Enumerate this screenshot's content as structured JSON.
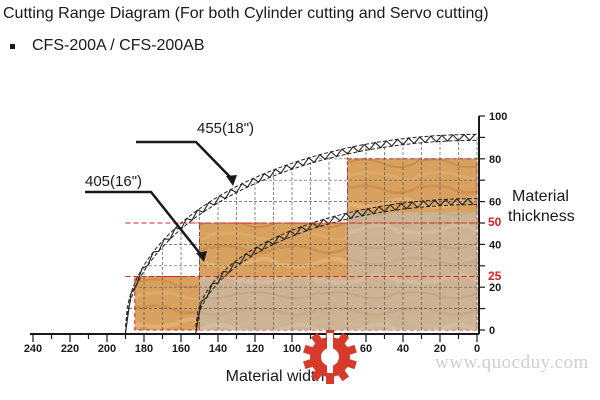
{
  "header": {
    "title": "Cutting Range Diagram (For both Cylinder cutting and Servo cutting)",
    "model": "CFS-200A / CFS-200AB"
  },
  "annotations": {
    "blade_455": "455(18\")",
    "blade_405": "405(16\")",
    "mark_50": "50",
    "mark_25": "25"
  },
  "watermark": "www.quocduy.com",
  "colors": {
    "outer_fill": "#d9a160",
    "inner_fill": "#ccb599",
    "grid": "#5a5a5a",
    "red_mark": "#e02020",
    "logo_red": "#d63a2a"
  },
  "chart_data": {
    "type": "area",
    "xlabel": "Material width",
    "ylabel": "Material thickness",
    "xticks": [
      240,
      220,
      200,
      180,
      160,
      140,
      120,
      100,
      80,
      60,
      40,
      20,
      0
    ],
    "yticks": [
      0,
      20,
      40,
      60,
      80,
      100
    ],
    "yticks_red": [
      25,
      50
    ],
    "xlim": [
      240,
      0
    ],
    "ylim": [
      0,
      100
    ],
    "arcs": [
      {
        "name": "455(18\")",
        "radius_width": 190,
        "peak_thickness": 90
      },
      {
        "name": "405(16\")",
        "radius_width": 152,
        "peak_thickness": 60
      }
    ],
    "regions_outer": [
      {
        "x_from": 0,
        "x_to": 70,
        "y_from": 0,
        "y_to": 80
      },
      {
        "x_from": 70,
        "x_to": 150,
        "y_from": 0,
        "y_to": 50
      },
      {
        "x_from": 150,
        "x_to": 185,
        "y_from": 0,
        "y_to": 25
      }
    ],
    "regions_inner": [
      {
        "x_from": 0,
        "x_to": 70,
        "y_from": 0,
        "y_to": 55
      },
      {
        "x_from": 70,
        "x_to": 150,
        "y_from": 0,
        "y_to": 25
      }
    ]
  }
}
